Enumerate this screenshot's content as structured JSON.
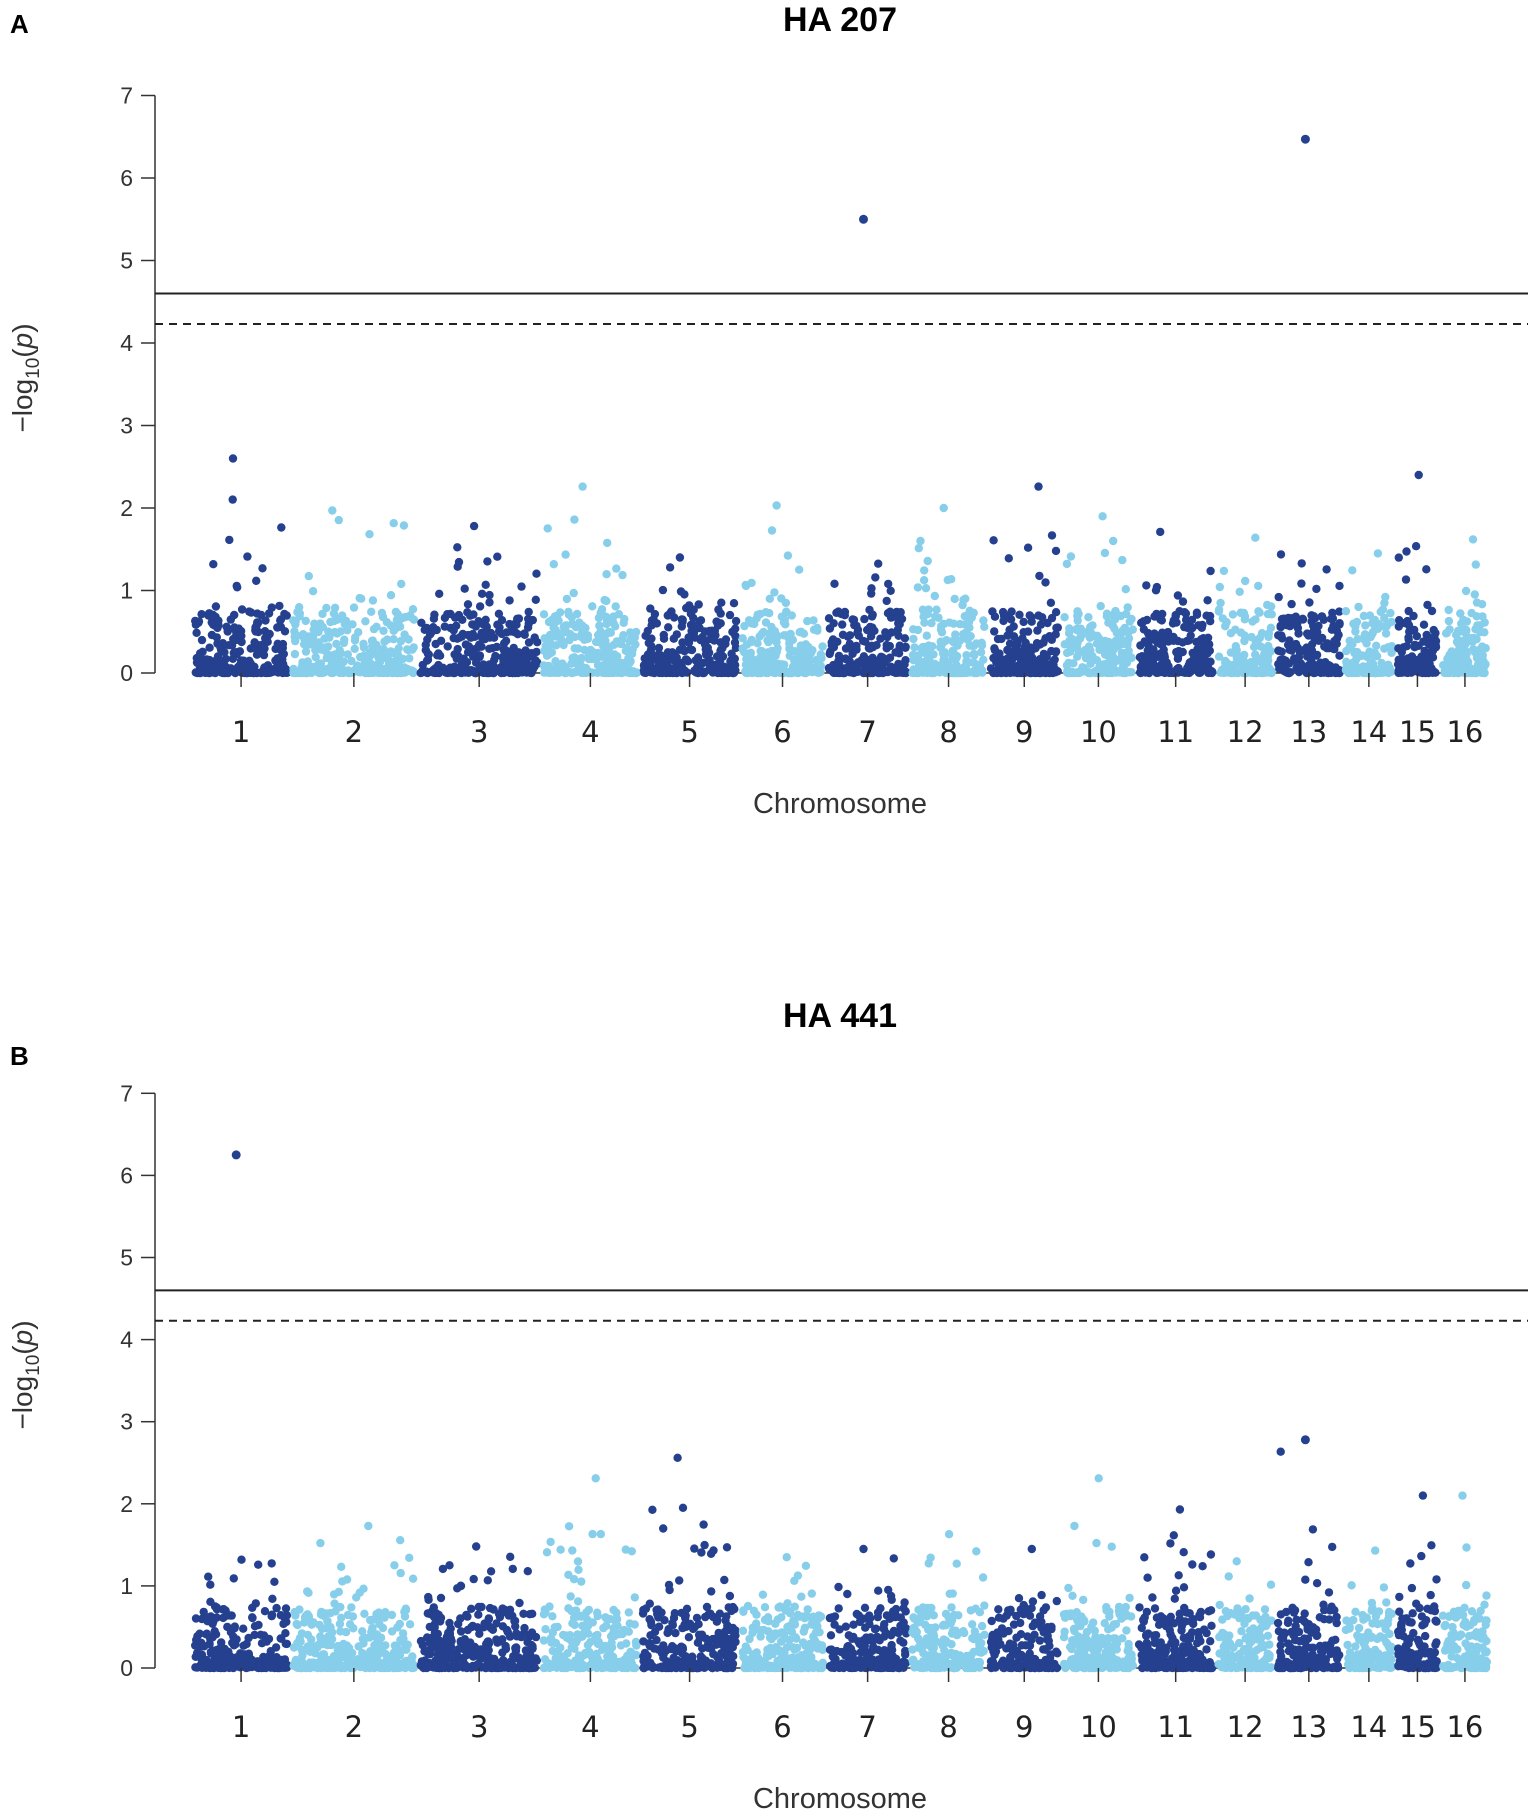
{
  "chart_data": [
    {
      "type": "scatter",
      "subtype": "manhattan",
      "panel": "A",
      "title": "HA 207",
      "xlabel": "Chromosome",
      "ylabel_main": "−log",
      "ylabel_sub": "10",
      "ylabel_var": "p",
      "ylim": [
        0,
        7
      ],
      "yticks": [
        "0",
        "1",
        "2",
        "3",
        "4",
        "5",
        "6",
        "7"
      ],
      "chromosomes": [
        "1",
        "2",
        "3",
        "4",
        "5",
        "6",
        "7",
        "8",
        "9",
        "10",
        "11",
        "12",
        "13",
        "14",
        "15",
        "16"
      ],
      "threshold_solid": 4.6,
      "threshold_dashed": 4.23,
      "colors": {
        "dark": "#24408e",
        "light": "#87ceeb",
        "line": "#222222"
      },
      "chrom_max": [
        2.6,
        1.97,
        1.78,
        2.26,
        1.4,
        2.03,
        5.5,
        2.0,
        2.26,
        1.9,
        1.71,
        1.64,
        6.47,
        1.45,
        2.4,
        1.62
      ],
      "highlights": [
        {
          "chrom": "7",
          "value": 5.5
        },
        {
          "chrom": "13",
          "value": 6.47
        }
      ]
    },
    {
      "type": "scatter",
      "subtype": "manhattan",
      "panel": "B",
      "title": "HA 441",
      "xlabel": "Chromosome",
      "ylabel_main": "−log",
      "ylabel_sub": "10",
      "ylabel_var": "p",
      "ylim": [
        0,
        7
      ],
      "yticks": [
        "0",
        "1",
        "2",
        "3",
        "4",
        "5",
        "6",
        "7"
      ],
      "chromosomes": [
        "1",
        "2",
        "3",
        "4",
        "5",
        "6",
        "7",
        "8",
        "9",
        "10",
        "11",
        "12",
        "13",
        "14",
        "15",
        "16"
      ],
      "threshold_solid": 4.6,
      "threshold_dashed": 4.23,
      "colors": {
        "dark": "#24408e",
        "light": "#87ceeb",
        "line": "#222222"
      },
      "chrom_max": [
        6.25,
        1.73,
        1.48,
        2.31,
        2.56,
        1.35,
        1.45,
        1.63,
        1.45,
        2.31,
        1.93,
        1.3,
        2.78,
        1.43,
        2.1,
        2.1
      ],
      "highlights": [
        {
          "chrom": "1",
          "value": 6.25
        },
        {
          "chrom": "13",
          "value": 2.78
        }
      ]
    }
  ]
}
